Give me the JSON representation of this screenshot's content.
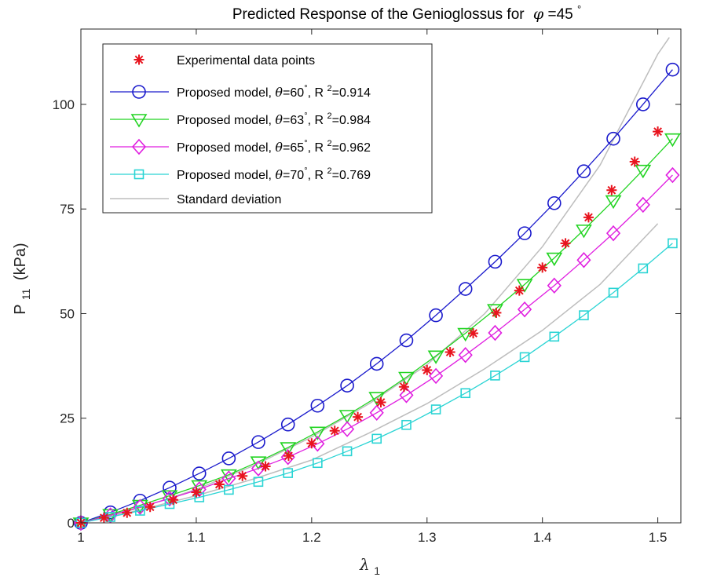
{
  "chart_data": {
    "type": "line",
    "title": {
      "prefix": "Predicted Response of the Genioglossus for",
      "symbol": "φ",
      "value": "=45",
      "degree": "°"
    },
    "xlabel": {
      "main": "λ",
      "sub": "1"
    },
    "ylabel": {
      "main": "P",
      "sub": "11",
      "unit": "(kPa)"
    },
    "xlim": [
      1.0,
      1.52
    ],
    "ylim": [
      0,
      118
    ],
    "xticks": [
      1.0,
      1.1,
      1.2,
      1.3,
      1.4,
      1.5
    ],
    "xtick_labels": [
      "1",
      "1.1",
      "1.2",
      "1.3",
      "1.4",
      "1.5"
    ],
    "yticks": [
      0,
      25,
      50,
      75,
      100
    ],
    "ytick_labels": [
      "0",
      "25",
      "50",
      "75",
      "100"
    ],
    "grid": false,
    "legend_position": "top-left",
    "experimental": {
      "legend": "Experimental data points",
      "color": "#e8141e",
      "x": [
        1.0,
        1.02,
        1.04,
        1.06,
        1.08,
        1.1,
        1.12,
        1.14,
        1.16,
        1.18,
        1.2,
        1.22,
        1.24,
        1.26,
        1.28,
        1.3,
        1.32,
        1.34,
        1.36,
        1.38,
        1.4,
        1.42,
        1.44,
        1.46,
        1.48,
        1.5
      ],
      "y": [
        0.0,
        1.2,
        2.4,
        3.8,
        5.5,
        7.3,
        9.2,
        11.2,
        13.5,
        16.0,
        19.0,
        22.0,
        25.3,
        28.8,
        32.5,
        36.5,
        40.8,
        45.3,
        50.2,
        55.5,
        61.0,
        66.8,
        73.0,
        79.5,
        86.3,
        93.5
      ]
    },
    "series": [
      {
        "legend_prefix": "Proposed model,",
        "theta_symbol": "θ",
        "theta_value": "=60",
        "degree": "°",
        "r2_label": "R",
        "r2_exp": "2",
        "r2_value": "=0.914",
        "color": "#1a1acc",
        "marker": "circle",
        "x": [
          1.0,
          1.0256,
          1.0513,
          1.0769,
          1.1026,
          1.1282,
          1.1538,
          1.1795,
          1.2051,
          1.2308,
          1.2564,
          1.2821,
          1.3077,
          1.3333,
          1.359,
          1.3846,
          1.4103,
          1.4359,
          1.4615,
          1.4872,
          1.5128
        ],
        "y": [
          0.0,
          2.5,
          5.3,
          8.4,
          11.8,
          15.4,
          19.3,
          23.5,
          28.0,
          32.8,
          38.0,
          43.6,
          49.6,
          55.9,
          62.4,
          69.2,
          76.4,
          84.0,
          91.8,
          100.0,
          108.3
        ]
      },
      {
        "legend_prefix": "Proposed model,",
        "theta_symbol": "θ",
        "theta_value": "=63",
        "degree": "°",
        "r2_label": "R",
        "r2_exp": "2",
        "r2_value": "=0.984",
        "color": "#22d422",
        "marker": "triangle-down",
        "x": [
          1.0,
          1.0256,
          1.0513,
          1.0769,
          1.1026,
          1.1282,
          1.1538,
          1.1795,
          1.2051,
          1.2308,
          1.2564,
          1.2821,
          1.3077,
          1.3333,
          1.359,
          1.3846,
          1.4103,
          1.4359,
          1.4615,
          1.4872,
          1.5128
        ],
        "y": [
          0.0,
          2.0,
          4.2,
          6.5,
          8.9,
          11.5,
          14.6,
          18.0,
          21.7,
          25.7,
          30.0,
          34.8,
          39.9,
          45.3,
          51.0,
          57.0,
          63.3,
          70.0,
          77.0,
          84.3,
          91.8
        ]
      },
      {
        "legend_prefix": "Proposed model,",
        "theta_symbol": "θ",
        "theta_value": "=65",
        "degree": "°",
        "r2_label": "R",
        "r2_exp": "2",
        "r2_value": "=0.962",
        "color": "#e01ee0",
        "marker": "diamond",
        "x": [
          1.0,
          1.0256,
          1.0513,
          1.0769,
          1.1026,
          1.1282,
          1.1538,
          1.1795,
          1.2051,
          1.2308,
          1.2564,
          1.2821,
          1.3077,
          1.3333,
          1.359,
          1.3846,
          1.4103,
          1.4359,
          1.4615,
          1.4872,
          1.5128
        ],
        "y": [
          0.0,
          1.8,
          3.8,
          5.8,
          8.0,
          10.6,
          13.0,
          15.7,
          18.9,
          22.4,
          26.3,
          30.5,
          35.1,
          40.1,
          45.4,
          51.0,
          56.7,
          62.8,
          69.2,
          76.0,
          83.1
        ]
      },
      {
        "legend_prefix": "Proposed model,",
        "theta_symbol": "θ",
        "theta_value": "=70",
        "degree": "°",
        "r2_label": "R",
        "r2_exp": "2",
        "r2_value": "=0.769",
        "color": "#2ad4d4",
        "marker": "square",
        "x": [
          1.0,
          1.0256,
          1.0513,
          1.0769,
          1.1026,
          1.1282,
          1.1538,
          1.1795,
          1.2051,
          1.2308,
          1.2564,
          1.2821,
          1.3077,
          1.3333,
          1.359,
          1.3846,
          1.4103,
          1.4359,
          1.4615,
          1.4872,
          1.5128
        ],
        "y": [
          0.0,
          1.4,
          2.9,
          4.5,
          6.1,
          7.9,
          9.8,
          11.9,
          14.3,
          17.1,
          20.1,
          23.4,
          27.1,
          31.0,
          35.2,
          39.6,
          44.5,
          49.6,
          55.0,
          60.8,
          66.8
        ]
      }
    ],
    "std_dev": {
      "legend": "Standard deviation",
      "color": "#bdbdbd",
      "upper": {
        "x": [
          1.0,
          1.05,
          1.1,
          1.15,
          1.2,
          1.25,
          1.3,
          1.35,
          1.4,
          1.45,
          1.5,
          1.51
        ],
        "y": [
          0.0,
          3.5,
          8.0,
          13.7,
          20.5,
          28.5,
          37.8,
          50.0,
          66.0,
          85.5,
          112.0,
          116.0
        ]
      },
      "lower": {
        "x": [
          1.0,
          1.05,
          1.1,
          1.15,
          1.2,
          1.25,
          1.3,
          1.35,
          1.4,
          1.45,
          1.5
        ],
        "y": [
          0.0,
          3.0,
          6.5,
          10.5,
          15.0,
          21.5,
          28.5,
          36.8,
          46.0,
          57.0,
          71.5
        ]
      }
    }
  }
}
